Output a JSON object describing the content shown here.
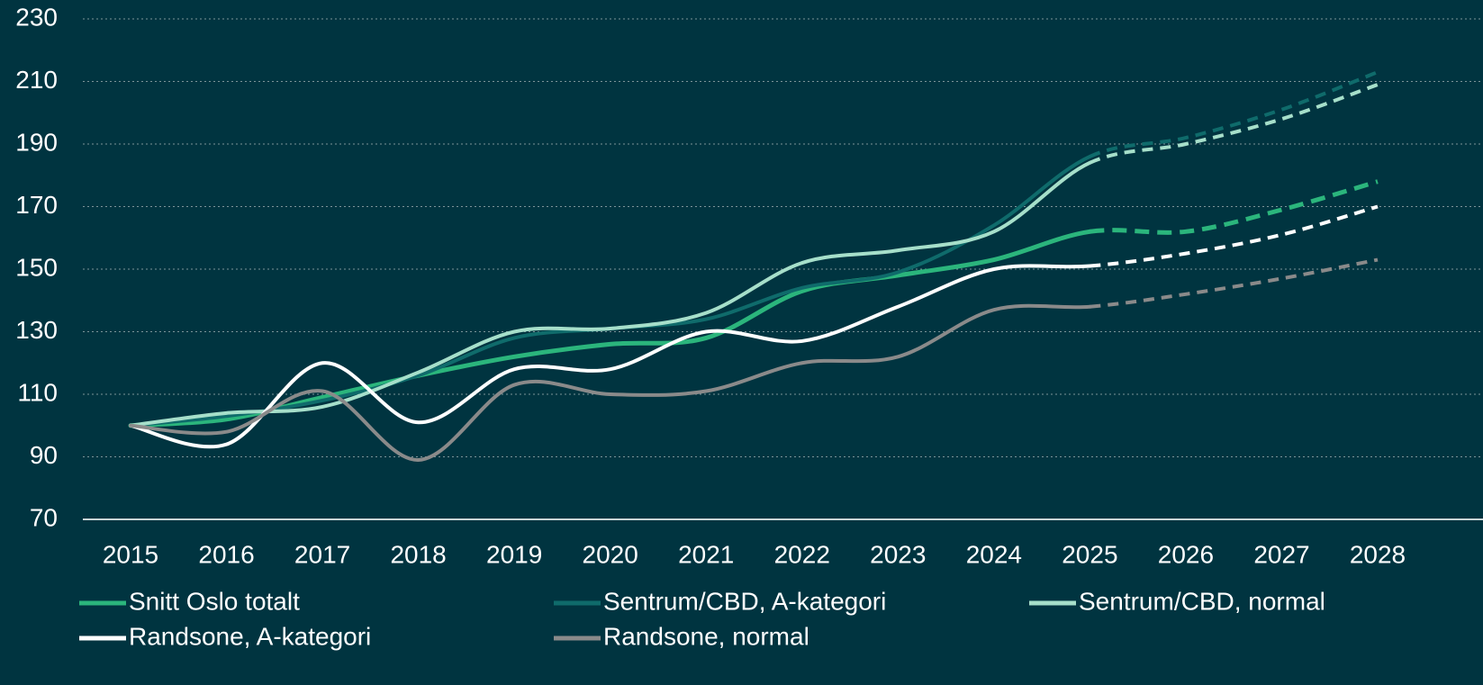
{
  "chart_data": {
    "type": "line",
    "categories": [
      "2015",
      "2016",
      "2017",
      "2018",
      "2019",
      "2020",
      "2021",
      "2022",
      "2023",
      "2024",
      "2025",
      "2026",
      "2027",
      "2028"
    ],
    "dashed_from": "2025",
    "ylim": [
      70,
      230
    ],
    "yticks": [
      70,
      90,
      110,
      130,
      150,
      170,
      190,
      210,
      230
    ],
    "grid": true,
    "legend": "bottom",
    "series": [
      {
        "name": "Snitt Oslo totalt",
        "color": "#2bb57c",
        "values": [
          100,
          102,
          109,
          116,
          122,
          126,
          128,
          143,
          148,
          153,
          162,
          162,
          169,
          178
        ]
      },
      {
        "name": "Sentrum/CBD, A-kategori",
        "color": "#0f6b6b",
        "values": [
          100,
          103,
          108,
          116,
          128,
          131,
          134,
          144,
          149,
          164,
          186,
          192,
          201,
          213
        ]
      },
      {
        "name": "Sentrum/CBD, normal",
        "color": "#a6dfca",
        "values": [
          100,
          104,
          106,
          117,
          130,
          131,
          136,
          152,
          156,
          162,
          184,
          190,
          198,
          209
        ]
      },
      {
        "name": "Randsone, A-kategori",
        "color": "#ffffff",
        "values": [
          100,
          94,
          120,
          101,
          118,
          118,
          130,
          127,
          138,
          150,
          151,
          155,
          161,
          170
        ]
      },
      {
        "name": "Randsone, normal",
        "color": "#8a8a8a",
        "values": [
          100,
          98,
          111,
          89,
          113,
          110,
          111,
          120,
          122,
          137,
          138,
          142,
          147,
          153
        ]
      }
    ]
  }
}
